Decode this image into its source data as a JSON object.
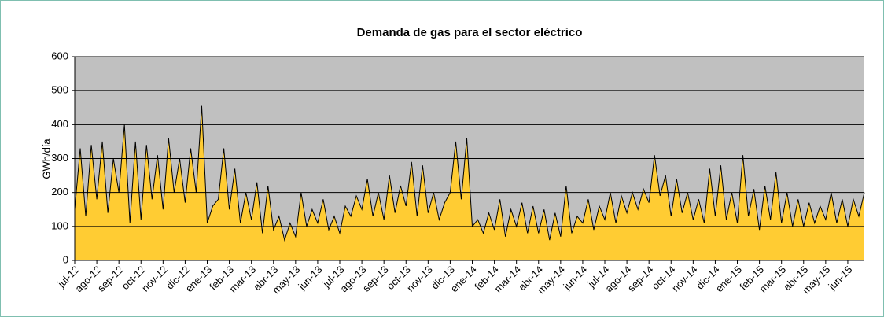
{
  "chart_data": {
    "type": "area",
    "title": "Demanda de gas para el sector eléctrico",
    "y_label": "GWh/día",
    "categories": [
      "jul-12",
      null,
      null,
      null,
      "ago-12",
      null,
      null,
      null,
      "sep-12",
      null,
      null,
      null,
      "oct-12",
      null,
      null,
      null,
      "nov-12",
      null,
      null,
      null,
      "dic-12",
      null,
      null,
      null,
      "ene-13",
      null,
      null,
      null,
      "feb-13",
      null,
      null,
      null,
      "mar-13",
      null,
      null,
      null,
      "abr-13",
      null,
      null,
      null,
      "may-13",
      null,
      null,
      null,
      "jun-13",
      null,
      null,
      null,
      "jul-13",
      null,
      null,
      null,
      "ago-13",
      null,
      null,
      null,
      "sep-13",
      null,
      null,
      null,
      "oct-13",
      null,
      null,
      null,
      "nov-13",
      null,
      null,
      null,
      "dic-13",
      null,
      null,
      null,
      "ene-14",
      null,
      null,
      null,
      "feb-14",
      null,
      null,
      null,
      "mar-14",
      null,
      null,
      null,
      "abr-14",
      null,
      null,
      null,
      "may-14",
      null,
      null,
      null,
      "jun-14",
      null,
      null,
      null,
      "jul-14",
      null,
      null,
      null,
      "ago-14",
      null,
      null,
      null,
      "sep-14",
      null,
      null,
      null,
      "oct-14",
      null,
      null,
      null,
      "nov-14",
      null,
      null,
      null,
      "dic-14",
      null,
      null,
      null,
      "ene-15",
      null,
      null,
      null,
      "feb-15",
      null,
      null,
      null,
      "mar-15",
      null,
      null,
      null,
      "abr-15",
      null,
      null,
      null,
      "may-15",
      null,
      null,
      null,
      "jun-15",
      null,
      null,
      null
    ],
    "values": [
      150,
      330,
      130,
      340,
      180,
      350,
      140,
      300,
      200,
      400,
      110,
      350,
      120,
      340,
      180,
      310,
      150,
      360,
      200,
      300,
      170,
      330,
      200,
      455,
      110,
      160,
      180,
      330,
      150,
      270,
      110,
      200,
      120,
      230,
      80,
      220,
      90,
      130,
      60,
      110,
      70,
      200,
      100,
      150,
      110,
      180,
      90,
      130,
      80,
      160,
      130,
      190,
      150,
      240,
      130,
      200,
      120,
      250,
      140,
      220,
      160,
      290,
      130,
      280,
      140,
      200,
      120,
      170,
      200,
      350,
      180,
      360,
      100,
      120,
      80,
      140,
      90,
      180,
      70,
      150,
      100,
      170,
      80,
      160,
      80,
      150,
      60,
      140,
      70,
      220,
      80,
      130,
      110,
      180,
      90,
      160,
      120,
      200,
      110,
      190,
      140,
      200,
      150,
      210,
      170,
      310,
      190,
      250,
      130,
      240,
      140,
      200,
      120,
      180,
      110,
      270,
      130,
      280,
      120,
      200,
      110,
      310,
      130,
      210,
      90,
      220,
      120,
      260,
      110,
      200,
      100,
      180,
      100,
      170,
      110,
      160,
      120,
      200,
      110,
      180,
      100,
      180,
      130,
      200
    ],
    "color": "#ffcc33",
    "line_color": "#000000",
    "plot_background": "#c0c0c0",
    "ylim": [
      0,
      600
    ],
    "yticks": [
      0,
      100,
      200,
      300,
      400,
      500,
      600
    ],
    "grid": true
  }
}
